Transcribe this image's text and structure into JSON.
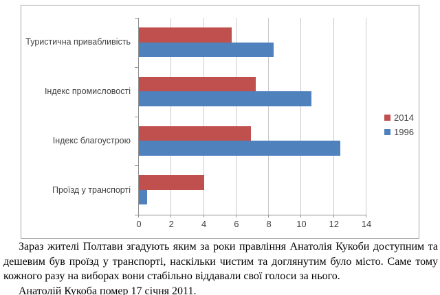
{
  "chart_data": {
    "type": "bar",
    "orientation": "horizontal",
    "categories": [
      "Туристична привабливість",
      "Індекс промисловості",
      "Індекс благоустрою",
      "Проїзд у транспорті"
    ],
    "series": [
      {
        "name": "2014",
        "color": "#C0504D",
        "values": [
          5.7,
          7.2,
          6.9,
          4.0
        ]
      },
      {
        "name": "1996",
        "color": "#4F81BD",
        "values": [
          8.3,
          10.6,
          12.4,
          0.5
        ]
      }
    ],
    "xlim": [
      0,
      14
    ],
    "x_ticks": [
      0,
      2,
      4,
      6,
      8,
      10,
      12,
      14
    ],
    "grid": true,
    "legend_position": "right-middle",
    "colors": {
      "gridline": "#c9c9c9",
      "axis": "#8e8e8e",
      "label_text": "#404040",
      "chart_border": "#a3a3a3"
    }
  },
  "text": {
    "paragraph1": "Зараз жителі Полтави згадують яким за роки правління Анатолія Кукоби доступним та дешевим був проїзд у транспорті, наскільки чистим та доглянутим було місто. Саме тому кожного разу на виборах вони стабільно віддавали свої голоси за нього.",
    "paragraph2": "Анатолій Кукоба помер 17 січня 2011."
  }
}
